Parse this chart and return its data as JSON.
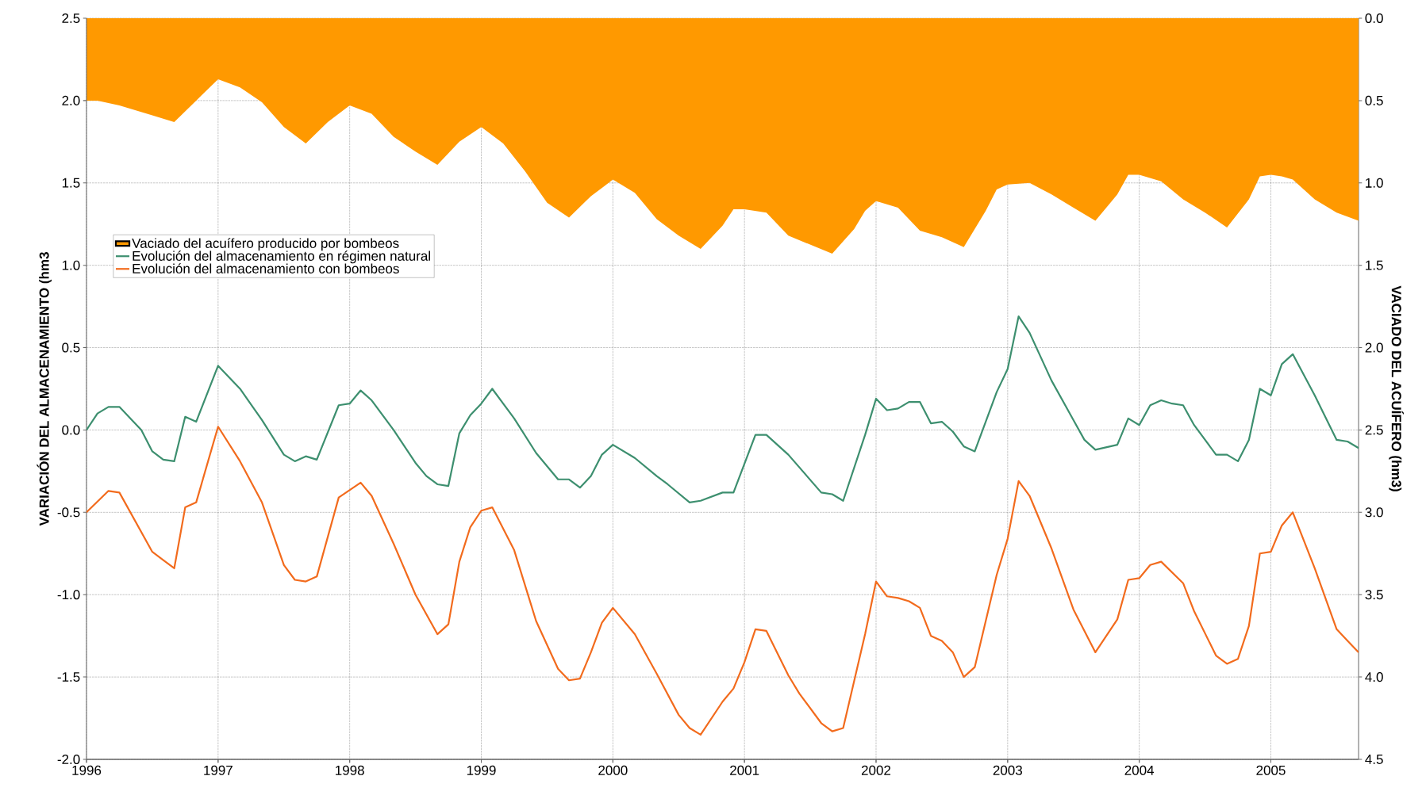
{
  "chart_data": {
    "type": "line",
    "xlabel": null,
    "ylabel": "VARIACIÓN DEL ALMACENAMIENTO (hm3",
    "y2label": "VACIADO DEL ACUÍFERO (hm3)",
    "xlim": [
      "1996-01",
      "2005-09"
    ],
    "xticks": [
      "1996",
      "1997",
      "1998",
      "1999",
      "2000",
      "2001",
      "2002",
      "2003",
      "2004",
      "2005"
    ],
    "ylim": [
      -2.0,
      2.5
    ],
    "yticks": [
      {
        "value": -2.0,
        "label": "-2.0"
      },
      -1.5,
      {
        "value": -1.0,
        "label": "-1.0"
      },
      -0.5,
      {
        "value": 0.0,
        "label": "0.0"
      },
      0.5,
      {
        "value": 1.0,
        "label": "1.0"
      },
      1.5,
      {
        "value": 2.0,
        "label": "2.0"
      },
      2.5
    ],
    "y2lim": [
      4.5,
      0.0
    ],
    "y2ticks": [
      {
        "value": 0.0,
        "label": "0.0"
      },
      0.5,
      {
        "value": 1.0,
        "label": "1.0"
      },
      1.5,
      {
        "value": 2.0,
        "label": "2.0"
      },
      2.5,
      {
        "value": 3.0,
        "label": "3.0"
      },
      3.5,
      {
        "value": 4.0,
        "label": "4.0"
      },
      4.5
    ],
    "grid": true,
    "legend": "left",
    "series": [
      {
        "name": "Vaciado del acuífero producido por bombeos",
        "type": "area",
        "axis": "y2",
        "color": "#ff9900",
        "x": [
          "1996-01",
          "1996-02",
          "1996-04",
          "1996-07",
          "1996-09",
          "1996-11",
          "1997-01",
          "1997-03",
          "1997-05",
          "1997-07",
          "1997-09",
          "1997-11",
          "1998-01",
          "1998-03",
          "1998-05",
          "1998-07",
          "1998-09",
          "1998-11",
          "1999-01",
          "1999-03",
          "1999-05",
          "1999-07",
          "1999-09",
          "1999-11",
          "2000-01",
          "2000-03",
          "2000-05",
          "2000-07",
          "2000-09",
          "2000-11",
          "2000-12",
          "2001-01",
          "2001-03",
          "2001-05",
          "2001-09",
          "2001-11",
          "2001-12",
          "2002-01",
          "2002-03",
          "2002-05",
          "2002-07",
          "2002-09",
          "2002-11",
          "2002-12",
          "2003-01",
          "2003-03",
          "2003-05",
          "2003-07",
          "2003-09",
          "2003-11",
          "2003-12",
          "2004-01",
          "2004-03",
          "2004-05",
          "2004-07",
          "2004-09",
          "2004-11",
          "2004-12",
          "2005-01",
          "2005-02",
          "2005-03",
          "2005-05",
          "2005-07",
          "2005-09"
        ],
        "values": [
          0.5,
          0.5,
          0.53,
          0.59,
          0.63,
          0.5,
          0.37,
          0.42,
          0.51,
          0.66,
          0.76,
          0.63,
          0.53,
          0.58,
          0.72,
          0.81,
          0.89,
          0.75,
          0.66,
          0.76,
          0.93,
          1.12,
          1.21,
          1.08,
          0.98,
          1.06,
          1.22,
          1.32,
          1.4,
          1.26,
          1.16,
          1.16,
          1.18,
          1.32,
          1.43,
          1.28,
          1.17,
          1.11,
          1.15,
          1.29,
          1.33,
          1.39,
          1.17,
          1.04,
          1.01,
          1.0,
          1.07,
          1.15,
          1.23,
          1.07,
          0.95,
          0.95,
          0.99,
          1.1,
          1.18,
          1.27,
          1.1,
          0.96,
          0.95,
          0.96,
          0.98,
          1.1,
          1.18,
          1.23
        ]
      },
      {
        "name": "Evolución del almacenamiento en régimen natural",
        "color": "#3d8f6f",
        "x": [
          "1996-01",
          "1996-02",
          "1996-03",
          "1996-04",
          "1996-06",
          "1996-07",
          "1996-08",
          "1996-09",
          "1996-10",
          "1996-11",
          "1997-01",
          "1997-03",
          "1997-05",
          "1997-07",
          "1997-08",
          "1997-09",
          "1997-10",
          "1997-12",
          "1998-01",
          "1998-02",
          "1998-03",
          "1998-05",
          "1998-07",
          "1998-08",
          "1998-09",
          "1998-10",
          "1998-11",
          "1998-12",
          "1999-01",
          "1999-02",
          "1999-04",
          "1999-06",
          "1999-08",
          "1999-09",
          "1999-10",
          "1999-11",
          "1999-12",
          "2000-01",
          "2000-03",
          "2000-05",
          "2000-06",
          "2000-08",
          "2000-09",
          "2000-11",
          "2000-12",
          "2001-02",
          "2001-03",
          "2001-05",
          "2001-08",
          "2001-09",
          "2001-10",
          "2001-12",
          "2002-01",
          "2002-02",
          "2002-03",
          "2002-04",
          "2002-05",
          "2002-06",
          "2002-07",
          "2002-08",
          "2002-09",
          "2002-10",
          "2002-12",
          "2003-01",
          "2003-02",
          "2003-03",
          "2003-05",
          "2003-07",
          "2003-08",
          "2003-09",
          "2003-11",
          "2003-12",
          "2004-01",
          "2004-02",
          "2004-03",
          "2004-04",
          "2004-05",
          "2004-06",
          "2004-08",
          "2004-09",
          "2004-10",
          "2004-11",
          "2004-12",
          "2005-01",
          "2005-02",
          "2005-03",
          "2005-05",
          "2005-07",
          "2005-08",
          "2005-09"
        ],
        "values": [
          0.0,
          0.1,
          0.14,
          0.14,
          0.0,
          -0.13,
          -0.18,
          -0.19,
          0.08,
          0.05,
          0.39,
          0.25,
          0.06,
          -0.15,
          -0.19,
          -0.16,
          -0.18,
          0.15,
          0.16,
          0.24,
          0.18,
          0.0,
          -0.2,
          -0.28,
          -0.33,
          -0.34,
          -0.02,
          0.09,
          0.16,
          0.25,
          0.07,
          -0.14,
          -0.3,
          -0.3,
          -0.35,
          -0.28,
          -0.15,
          -0.09,
          -0.17,
          -0.28,
          -0.33,
          -0.44,
          -0.43,
          -0.38,
          -0.38,
          -0.03,
          -0.03,
          -0.15,
          -0.38,
          -0.39,
          -0.43,
          -0.03,
          0.19,
          0.12,
          0.13,
          0.17,
          0.17,
          0.04,
          0.05,
          -0.01,
          -0.1,
          -0.13,
          0.23,
          0.37,
          0.69,
          0.59,
          0.3,
          0.06,
          -0.06,
          -0.12,
          -0.09,
          0.07,
          0.03,
          0.15,
          0.18,
          0.16,
          0.15,
          0.03,
          -0.15,
          -0.15,
          -0.19,
          -0.06,
          0.25,
          0.21,
          0.4,
          0.46,
          0.21,
          -0.06,
          -0.07,
          -0.11
        ]
      },
      {
        "name": "Evolución del almacenamiento con bombeos",
        "color": "#f26b1d",
        "x": [
          "1996-01",
          "1996-03",
          "1996-04",
          "1996-07",
          "1996-08",
          "1996-09",
          "1996-10",
          "1996-11",
          "1997-01",
          "1997-03",
          "1997-05",
          "1997-07",
          "1997-08",
          "1997-09",
          "1997-10",
          "1997-12",
          "1998-02",
          "1998-03",
          "1998-05",
          "1998-07",
          "1998-09",
          "1998-10",
          "1998-11",
          "1998-12",
          "1999-01",
          "1999-02",
          "1999-04",
          "1999-06",
          "1999-08",
          "1999-09",
          "1999-10",
          "1999-11",
          "1999-12",
          "2000-01",
          "2000-03",
          "2000-05",
          "2000-07",
          "2000-08",
          "2000-09",
          "2000-11",
          "2000-12",
          "2001-01",
          "2001-02",
          "2001-03",
          "2001-05",
          "2001-06",
          "2001-08",
          "2001-09",
          "2001-10",
          "2001-12",
          "2002-01",
          "2002-02",
          "2002-03",
          "2002-04",
          "2002-05",
          "2002-06",
          "2002-07",
          "2002-08",
          "2002-09",
          "2002-10",
          "2002-12",
          "2003-01",
          "2003-02",
          "2003-03",
          "2003-05",
          "2003-07",
          "2003-09",
          "2003-11",
          "2003-12",
          "2004-01",
          "2004-02",
          "2004-03",
          "2004-05",
          "2004-06",
          "2004-08",
          "2004-09",
          "2004-10",
          "2004-11",
          "2004-12",
          "2005-01",
          "2005-02",
          "2005-03",
          "2005-05",
          "2005-07",
          "2005-08",
          "2005-09"
        ],
        "values": [
          -0.5,
          -0.37,
          -0.38,
          -0.74,
          -0.79,
          -0.84,
          -0.47,
          -0.44,
          0.02,
          -0.19,
          -0.44,
          -0.82,
          -0.91,
          -0.92,
          -0.89,
          -0.41,
          -0.32,
          -0.4,
          -0.69,
          -1.0,
          -1.24,
          -1.18,
          -0.8,
          -0.59,
          -0.49,
          -0.47,
          -0.73,
          -1.16,
          -1.45,
          -1.52,
          -1.51,
          -1.35,
          -1.17,
          -1.08,
          -1.24,
          -1.48,
          -1.73,
          -1.81,
          -1.85,
          -1.65,
          -1.57,
          -1.41,
          -1.21,
          -1.22,
          -1.49,
          -1.6,
          -1.78,
          -1.83,
          -1.81,
          -1.24,
          -0.92,
          -1.01,
          -1.02,
          -1.04,
          -1.08,
          -1.25,
          -1.28,
          -1.35,
          -1.5,
          -1.44,
          -0.88,
          -0.66,
          -0.31,
          -0.4,
          -0.72,
          -1.09,
          -1.35,
          -1.15,
          -0.91,
          -0.9,
          -0.82,
          -0.8,
          -0.93,
          -1.1,
          -1.37,
          -1.42,
          -1.39,
          -1.19,
          -0.75,
          -0.74,
          -0.58,
          -0.5,
          -0.84,
          -1.21,
          -1.28,
          -1.35
        ]
      }
    ]
  }
}
